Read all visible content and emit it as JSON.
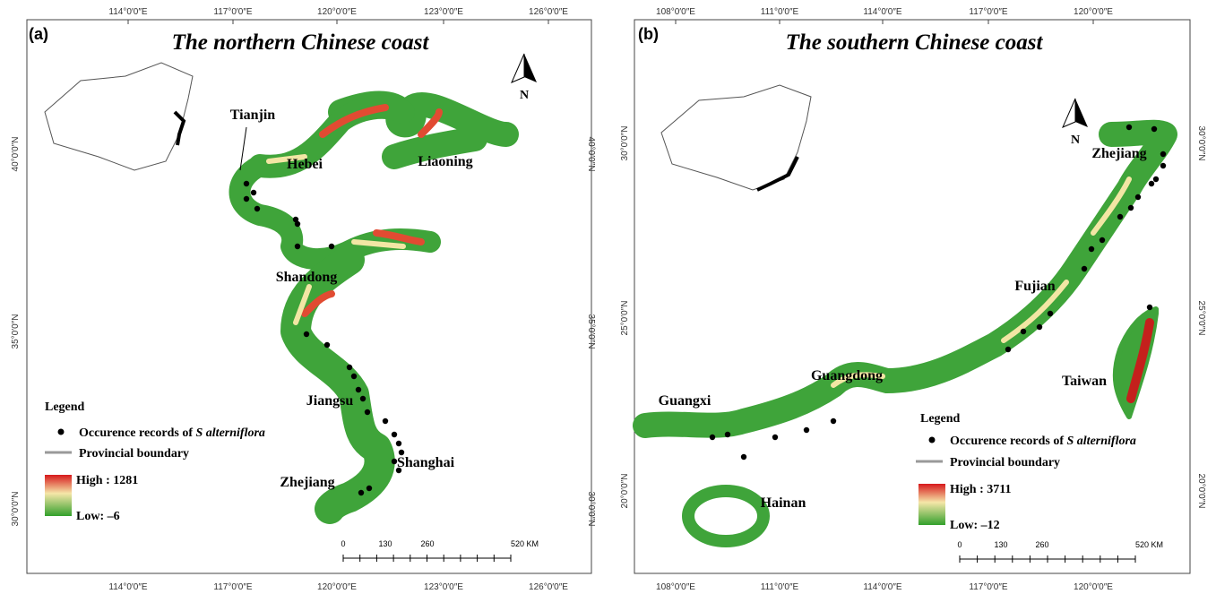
{
  "panels": [
    {
      "label": "(a)",
      "title": "The northern Chinese coast",
      "lon_labels": [
        "114°0′0″E",
        "117°0′0″E",
        "120°0′0″E",
        "123°0′0″E",
        "126°0′0″E"
      ],
      "lat_labels": [
        "30°0′0″N",
        "35°0′0″N",
        "40°0′0″N"
      ],
      "places": [
        "Tianjin",
        "Hebei",
        "Liaoning",
        "Shandong",
        "Jiangsu",
        "Shanghai",
        "Zhejiang"
      ],
      "legend": {
        "title": "Legend",
        "records_prefix": "Occurence records of ",
        "records_species": "S alterniflora",
        "boundary": "Provincial boundary",
        "high": "High : 1281",
        "low": "Low: –6"
      },
      "scale": [
        "0",
        "130",
        "260",
        "520 KM"
      ],
      "north": "N"
    },
    {
      "label": "(b)",
      "title": "The southern Chinese coast",
      "lon_labels": [
        "108°0′0″E",
        "111°0′0″E",
        "114°0′0″E",
        "117°0′0″E",
        "120°0′0″E"
      ],
      "lat_labels": [
        "20°0′0″N",
        "25°0′0″N",
        "30°0′0″N"
      ],
      "places": [
        "Zhejiang",
        "Fujian",
        "Taiwan",
        "Guangdong",
        "Guangxi",
        "Hainan"
      ],
      "legend": {
        "title": "Legend",
        "records_prefix": "Occurence records of ",
        "records_species": "S alterniflora",
        "boundary": "Provincial boundary",
        "high": "High : 3711",
        "low": "Low: –12"
      },
      "scale": [
        "0",
        "130",
        "260",
        "520 KM"
      ],
      "north": "N"
    }
  ]
}
